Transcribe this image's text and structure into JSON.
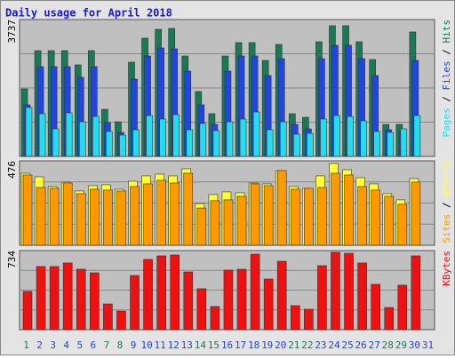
{
  "chart_data": [
    {
      "type": "bar",
      "title": "Daily usage for April 2018",
      "ylim": [
        0,
        3737
      ],
      "yticks": [
        3737
      ],
      "grid": true,
      "legend_separator": " / ",
      "series": [
        {
          "name": "Hits",
          "color": "#197a55",
          "values": [
            1844,
            2888,
            2888,
            2888,
            2500,
            2888,
            1286,
            946,
            2573,
            3228,
            3470,
            3495,
            2742,
            1772,
            1165,
            2742,
            3107,
            3107,
            2621,
            3058,
            1165,
            1068,
            3131,
            3568,
            3568,
            3131,
            2645,
            874,
            874,
            3398,
            0
          ]
        },
        {
          "name": "Files",
          "color": "#2146dd",
          "values": [
            1408,
            2451,
            2451,
            2451,
            2160,
            2451,
            922,
            655,
            2111,
            2742,
            2961,
            2937,
            2330,
            1408,
            874,
            2330,
            2742,
            2742,
            2208,
            2669,
            874,
            752,
            2669,
            3033,
            3033,
            2669,
            2208,
            728,
            680,
            2621,
            0
          ]
        },
        {
          "name": "Pages",
          "color": "#22ddee",
          "values": [
            1335,
            1165,
            752,
            1189,
            946,
            1092,
            680,
            582,
            728,
            1116,
            1019,
            1141,
            728,
            898,
            704,
            946,
            1019,
            1213,
            728,
            946,
            607,
            631,
            1019,
            1116,
            1092,
            971,
            680,
            655,
            752,
            1116,
            0
          ]
        }
      ]
    },
    {
      "type": "bar",
      "ylim": [
        0,
        476
      ],
      "yticks": [
        476
      ],
      "grid": true,
      "legend_separator": " / ",
      "series": [
        {
          "name": "Visits",
          "color": "#ffff33",
          "values": [
            406,
            386,
            331,
            356,
            306,
            336,
            341,
            316,
            361,
            391,
            401,
            391,
            431,
            235,
            286,
            301,
            296,
            351,
            346,
            421,
            331,
            321,
            391,
            461,
            426,
            381,
            346,
            291,
            256,
            376,
            0
          ]
        },
        {
          "name": "Sites",
          "color": "#ff9900",
          "values": [
            396,
            326,
            321,
            351,
            291,
            316,
            311,
            306,
            331,
            346,
            366,
            351,
            406,
            210,
            251,
            256,
            276,
            346,
            336,
            421,
            316,
            321,
            326,
            406,
            396,
            331,
            311,
            276,
            231,
            356,
            0
          ]
        }
      ]
    },
    {
      "type": "bar",
      "ylim": [
        0,
        734
      ],
      "yticks": [
        734
      ],
      "grid": true,
      "categories": [
        "1",
        "2",
        "3",
        "4",
        "5",
        "6",
        "7",
        "8",
        "9",
        "10",
        "11",
        "12",
        "13",
        "14",
        "15",
        "16",
        "17",
        "18",
        "19",
        "20",
        "21",
        "22",
        "23",
        "24",
        "25",
        "26",
        "27",
        "28",
        "29",
        "30",
        "31"
      ],
      "category_colors": [
        "#197a55",
        "#2146dd",
        "#2146dd",
        "#2146dd",
        "#2146dd",
        "#2146dd",
        "#197a55",
        "#197a55",
        "#2146dd",
        "#2146dd",
        "#2146dd",
        "#2146dd",
        "#2146dd",
        "#197a55",
        "#197a55",
        "#2146dd",
        "#2146dd",
        "#2146dd",
        "#2146dd",
        "#2146dd",
        "#197a55",
        "#197a55",
        "#2146dd",
        "#2146dd",
        "#2146dd",
        "#2146dd",
        "#2146dd",
        "#197a55",
        "#197a55",
        "#2146dd",
        "#2146dd"
      ],
      "series": [
        {
          "name": "KBytes",
          "color": "#ee1111",
          "values": [
            355,
            586,
            586,
            619,
            561,
            528,
            239,
            173,
            503,
            652,
            685,
            693,
            536,
            380,
            215,
            553,
            561,
            701,
            470,
            635,
            223,
            190,
            594,
            718,
            709,
            619,
            421,
            206,
            413,
            685,
            0
          ]
        }
      ]
    }
  ]
}
